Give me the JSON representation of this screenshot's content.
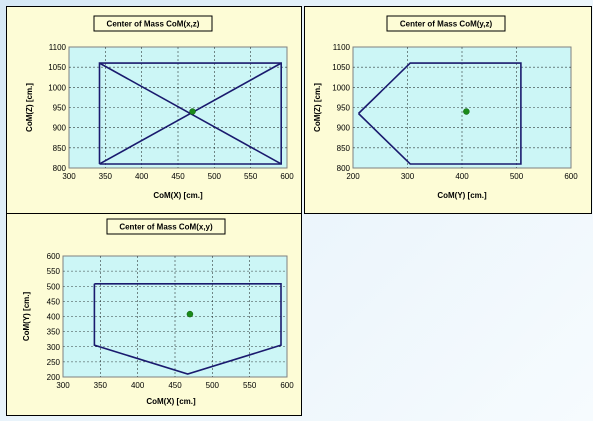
{
  "colors": {
    "panel_bg": "#fdfcd6",
    "plot_bg": "#ccf6f6",
    "line": "#1a1a6e",
    "point": "#1a8a1a"
  },
  "chart_data": [
    {
      "id": "xz",
      "type": "scatter",
      "title": "Center of Mass CoM(x,z)",
      "xlabel": "CoM(X) [cm.]",
      "ylabel": "CoM(Z) [cm.]",
      "xlim": [
        300,
        600
      ],
      "ylim": [
        800,
        1100
      ],
      "xticks": [
        300,
        350,
        400,
        450,
        500,
        550,
        600
      ],
      "yticks": [
        800,
        850,
        900,
        950,
        1000,
        1050,
        1100
      ],
      "grid": true,
      "outline": [
        [
          342,
          810
        ],
        [
          342,
          1060
        ],
        [
          592,
          1060
        ],
        [
          592,
          810
        ],
        [
          342,
          810
        ]
      ],
      "extra_lines": [
        [
          [
            342,
            1060
          ],
          [
            592,
            810
          ]
        ],
        [
          [
            342,
            810
          ],
          [
            592,
            1060
          ]
        ]
      ],
      "point": [
        470,
        940
      ]
    },
    {
      "id": "yz",
      "type": "scatter",
      "title": "Center of Mass CoM(y,z)",
      "xlabel": "CoM(Y) [cm.]",
      "ylabel": "CoM(Z) [cm.]",
      "xlim": [
        200,
        600
      ],
      "ylim": [
        800,
        1100
      ],
      "xticks": [
        200,
        300,
        400,
        500,
        600
      ],
      "yticks": [
        800,
        850,
        900,
        950,
        1000,
        1050,
        1100
      ],
      "grid": true,
      "outline": [
        [
          210,
          935
        ],
        [
          305,
          1060
        ],
        [
          508,
          1060
        ],
        [
          508,
          810
        ],
        [
          305,
          810
        ],
        [
          210,
          935
        ]
      ],
      "extra_lines": [],
      "point": [
        408,
        940
      ]
    },
    {
      "id": "xy",
      "type": "scatter",
      "title": "Center of Mass CoM(x,y)",
      "xlabel": "CoM(X) [cm.]",
      "ylabel": "CoM(Y) [cm.]",
      "xlim": [
        300,
        600
      ],
      "ylim": [
        200,
        600
      ],
      "xticks": [
        300,
        350,
        400,
        450,
        500,
        550,
        600
      ],
      "yticks": [
        200,
        250,
        300,
        350,
        400,
        450,
        500,
        550,
        600
      ],
      "grid": true,
      "outline": [
        [
          342,
          508
        ],
        [
          592,
          508
        ],
        [
          592,
          305
        ],
        [
          467,
          210
        ],
        [
          342,
          305
        ],
        [
          342,
          508
        ]
      ],
      "extra_lines": [],
      "point": [
        470,
        408
      ]
    }
  ]
}
